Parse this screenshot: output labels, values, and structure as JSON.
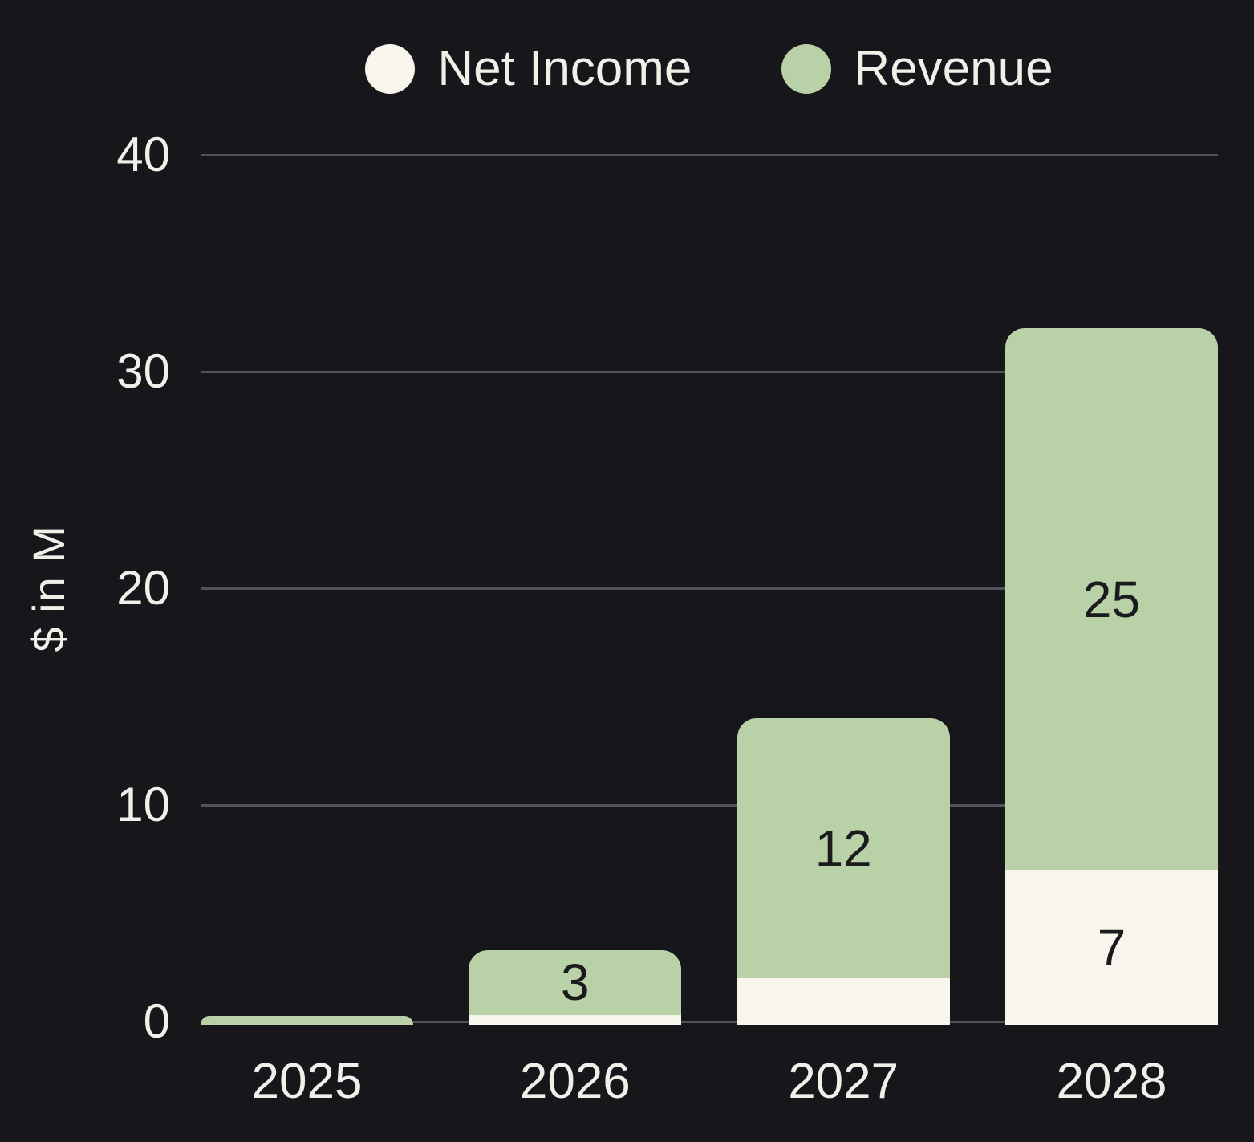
{
  "colors": {
    "background": "#17161b",
    "axis_text": "#f2efe9",
    "gridline": "#515158",
    "data_label": "#1b1b1e",
    "net_income": "#f8f5ec",
    "revenue": "#b9d1a7"
  },
  "legend": {
    "items": [
      {
        "label": "Net Income",
        "color": "#f8f5ec"
      },
      {
        "label": "Revenue",
        "color": "#b9d1a7"
      }
    ]
  },
  "chart_data": {
    "type": "bar",
    "stacked": true,
    "title": "",
    "xlabel": "",
    "ylabel": "$ in M",
    "ylim": [
      0,
      40
    ],
    "yticks": [
      "0",
      "10",
      "20",
      "30",
      "40"
    ],
    "grid": true,
    "legend_position": "top-center",
    "categories": [
      "2025",
      "2026",
      "2027",
      "2028"
    ],
    "series": [
      {
        "name": "Net Income",
        "color": "#f8f5ec",
        "values": [
          0,
          0.3,
          2,
          7
        ],
        "labels": [
          "",
          "",
          "",
          "7"
        ]
      },
      {
        "name": "Revenue",
        "color": "#b9d1a7",
        "values": [
          0.4,
          3,
          12,
          25
        ],
        "labels": [
          "",
          "3",
          "12",
          "25"
        ]
      }
    ]
  }
}
